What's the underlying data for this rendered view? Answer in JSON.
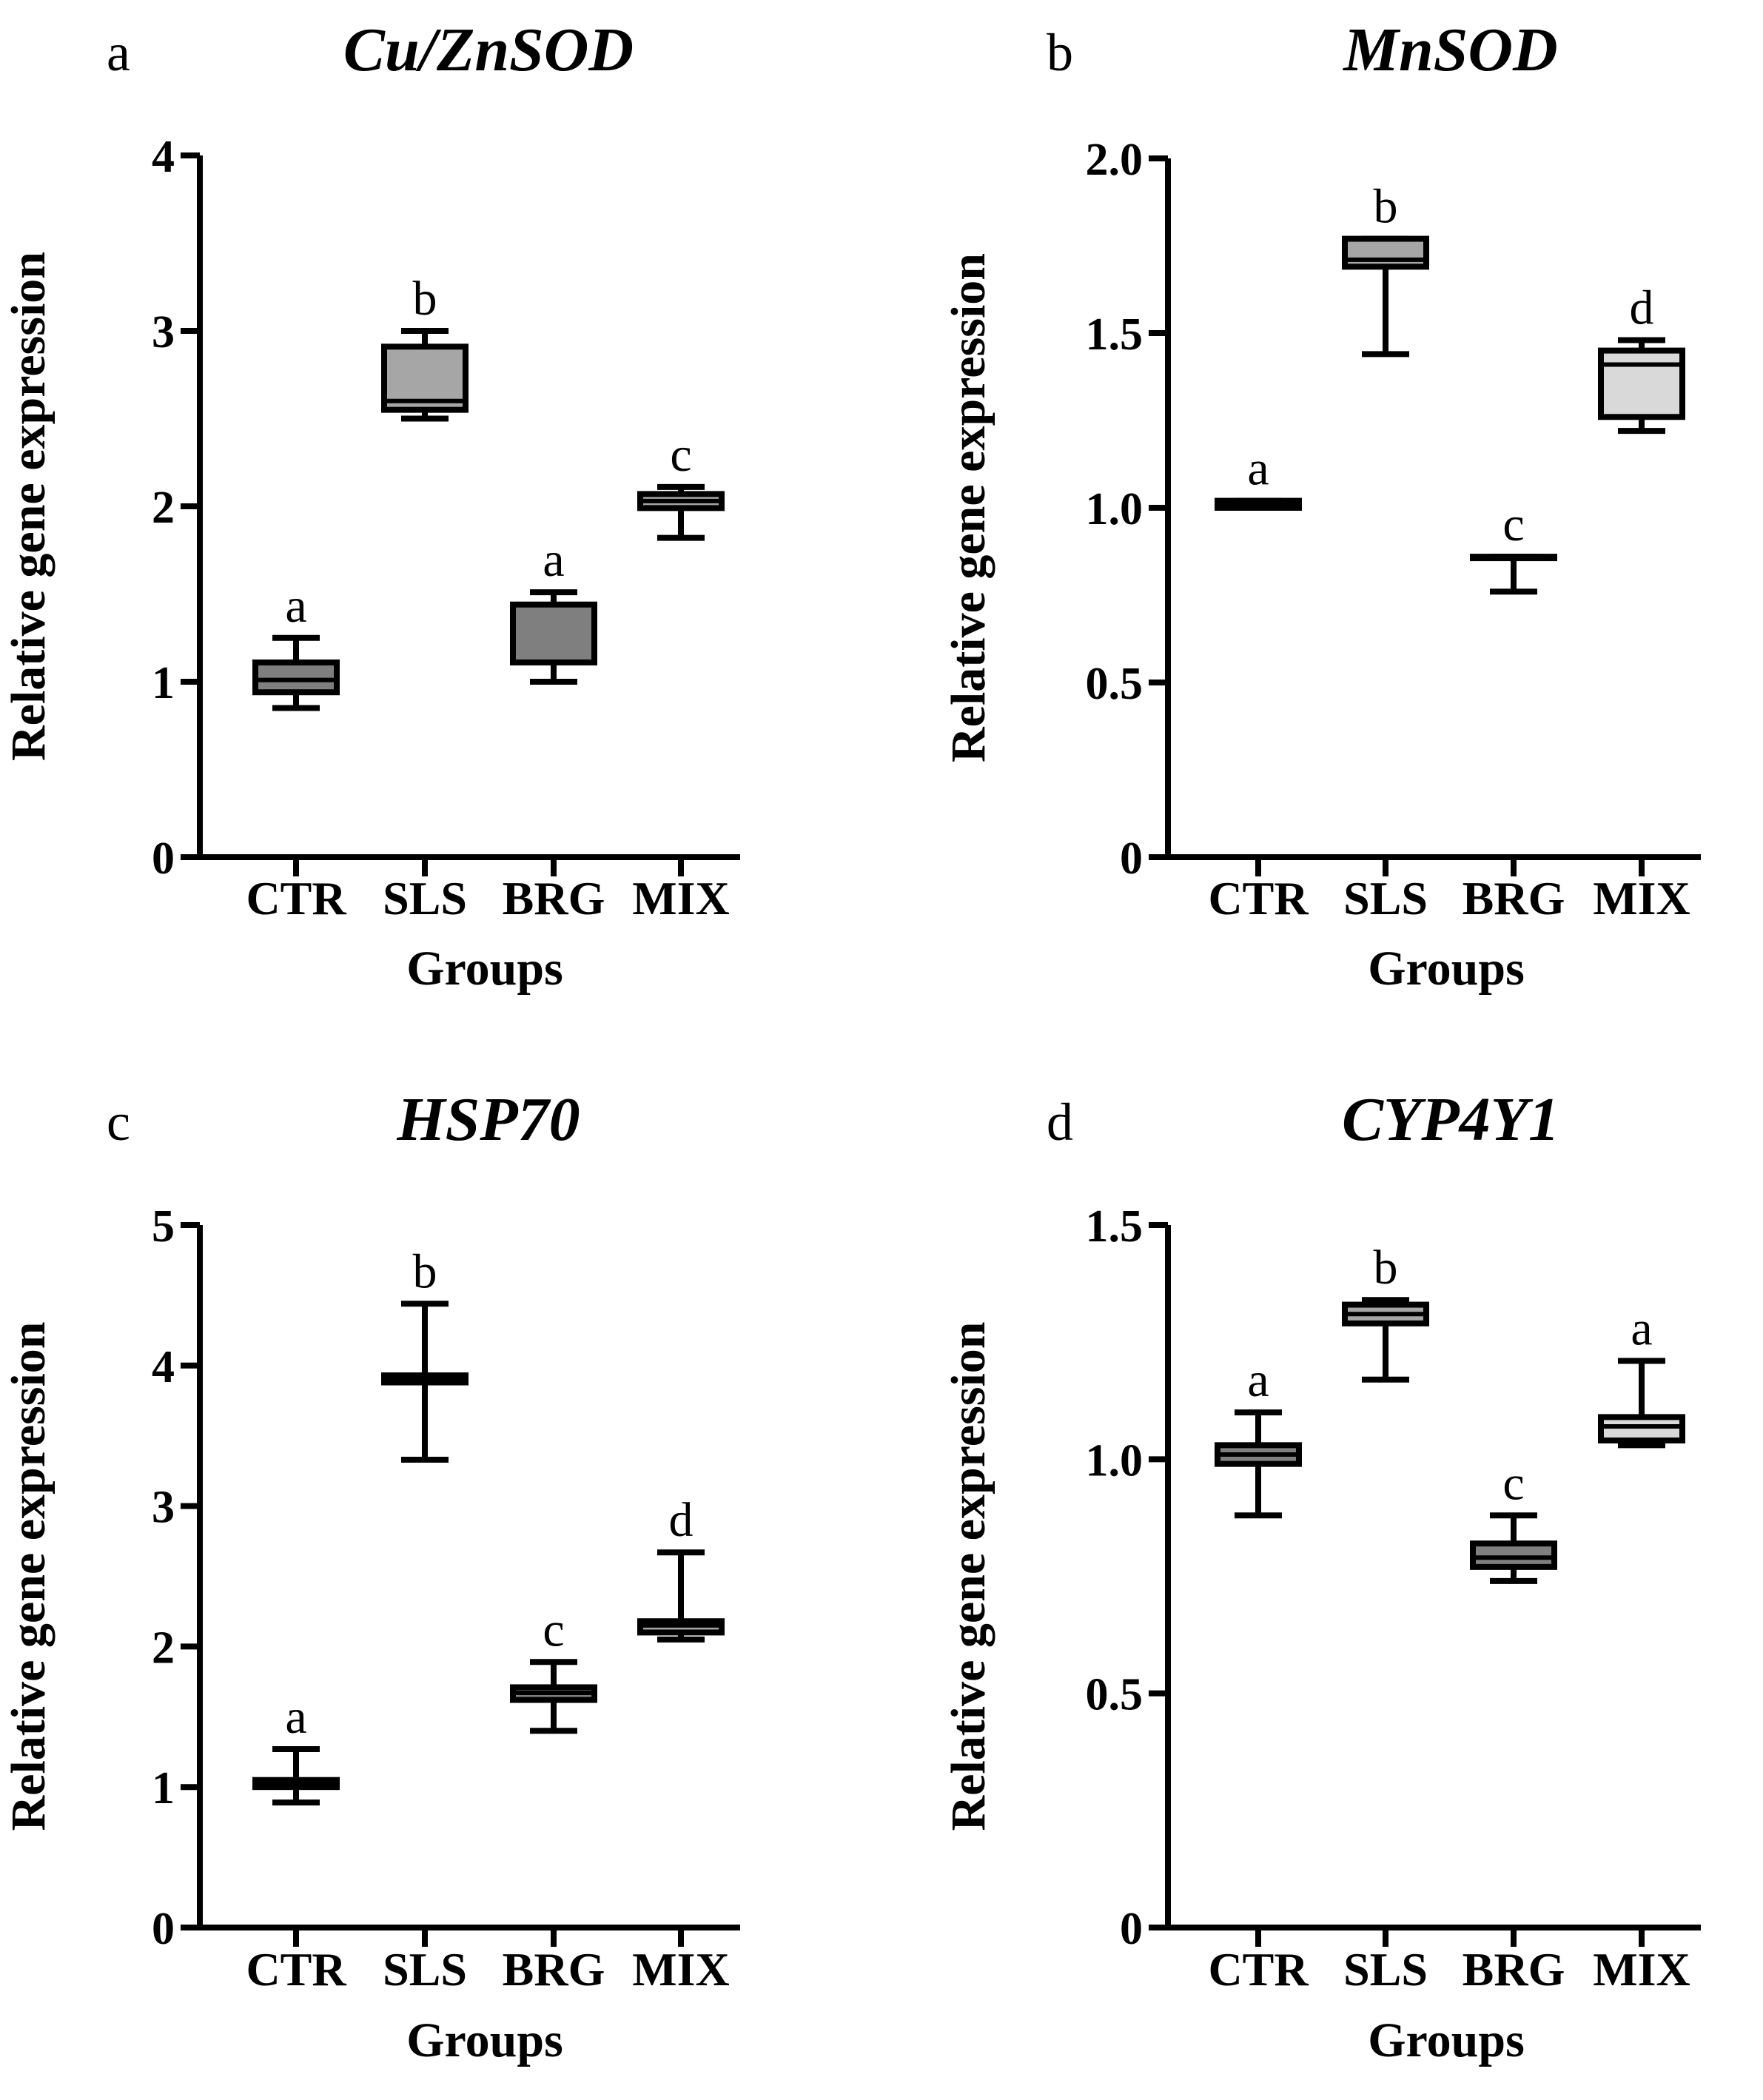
{
  "chart_data": [
    {
      "type": "box",
      "panel": "a",
      "title": "Cu/ZnSOD",
      "xlabel": "Groups",
      "ylabel": "Relative gene expression",
      "ylim": [
        0,
        4
      ],
      "yticks": [
        {
          "value": 0,
          "label": "0"
        },
        {
          "value": 1,
          "label": "1"
        },
        {
          "value": 2,
          "label": "2"
        },
        {
          "value": 3,
          "label": "3"
        },
        {
          "value": 4,
          "label": "4"
        }
      ],
      "categories": [
        "CTR",
        "SLS",
        "BRG",
        "MIX"
      ],
      "boxes": [
        {
          "group": "CTR",
          "min": 0.85,
          "q1": 0.94,
          "median": 1.01,
          "q3": 1.11,
          "max": 1.25,
          "fill": "#7f7f7f",
          "sig": "a"
        },
        {
          "group": "SLS",
          "min": 2.5,
          "q1": 2.55,
          "median": 2.6,
          "q3": 2.91,
          "max": 3.0,
          "fill": "#a6a6a6",
          "sig": "b"
        },
        {
          "group": "BRG",
          "min": 1.0,
          "q1": 1.11,
          "median": 1.11,
          "q3": 1.44,
          "max": 1.51,
          "fill": "#7f7f7f",
          "sig": "a"
        },
        {
          "group": "MIX",
          "min": 1.82,
          "q1": 1.99,
          "median": 2.03,
          "q3": 2.07,
          "max": 2.11,
          "fill": "#a6a6a6",
          "sig": "c"
        }
      ]
    },
    {
      "type": "box",
      "panel": "b",
      "title": "MnSOD",
      "xlabel": "Groups",
      "ylabel": "Relative gene expression",
      "ylim": [
        0,
        2.0
      ],
      "yticks": [
        {
          "value": 0,
          "label": "0"
        },
        {
          "value": 0.5,
          "label": "0.5"
        },
        {
          "value": 1.0,
          "label": "1.0"
        },
        {
          "value": 1.5,
          "label": "1.5"
        },
        {
          "value": 2.0,
          "label": "2.0"
        }
      ],
      "categories": [
        "CTR",
        "SLS",
        "BRG",
        "MIX"
      ],
      "boxes": [
        {
          "group": "CTR",
          "min": 1.0,
          "q1": 1.0,
          "median": 1.01,
          "q3": 1.02,
          "max": 1.02,
          "fill": "#7f7f7f",
          "sig": "a"
        },
        {
          "group": "SLS",
          "min": 1.44,
          "q1": 1.69,
          "median": 1.71,
          "q3": 1.77,
          "max": 1.77,
          "fill": "#a6a6a6",
          "sig": "b"
        },
        {
          "group": "BRG",
          "min": 0.76,
          "q1": 0.86,
          "median": 0.86,
          "q3": 0.86,
          "max": 0.86,
          "fill": "#7f7f7f",
          "sig": "c"
        },
        {
          "group": "MIX",
          "min": 1.22,
          "q1": 1.26,
          "median": 1.41,
          "q3": 1.45,
          "max": 1.48,
          "fill": "#d9d9d9",
          "sig": "d"
        }
      ]
    },
    {
      "type": "box",
      "panel": "c",
      "title": "HSP70",
      "xlabel": "Groups",
      "ylabel": "Relative gene expression",
      "ylim": [
        0,
        5
      ],
      "yticks": [
        {
          "value": 0,
          "label": "0"
        },
        {
          "value": 1,
          "label": "1"
        },
        {
          "value": 2,
          "label": "2"
        },
        {
          "value": 3,
          "label": "3"
        },
        {
          "value": 4,
          "label": "4"
        },
        {
          "value": 5,
          "label": "5"
        }
      ],
      "categories": [
        "CTR",
        "SLS",
        "BRG",
        "MIX"
      ],
      "boxes": [
        {
          "group": "CTR",
          "min": 0.89,
          "q1": 1.0,
          "median": 1.02,
          "q3": 1.05,
          "max": 1.27,
          "fill": "#7f7f7f",
          "sig": "a"
        },
        {
          "group": "SLS",
          "min": 3.33,
          "q1": 3.88,
          "median": 3.9,
          "q3": 3.93,
          "max": 4.44,
          "fill": "#a6a6a6",
          "sig": "b"
        },
        {
          "group": "BRG",
          "min": 1.4,
          "q1": 1.62,
          "median": 1.67,
          "q3": 1.71,
          "max": 1.89,
          "fill": "#7f7f7f",
          "sig": "c"
        },
        {
          "group": "MIX",
          "min": 2.05,
          "q1": 2.1,
          "median": 2.15,
          "q3": 2.18,
          "max": 2.67,
          "fill": "#a6a6a6",
          "sig": "d"
        }
      ]
    },
    {
      "type": "box",
      "panel": "d",
      "title": "CYP4Y1",
      "xlabel": "Groups",
      "ylabel": "Relative gene expression",
      "ylim": [
        0,
        1.5
      ],
      "yticks": [
        {
          "value": 0,
          "label": "0"
        },
        {
          "value": 0.5,
          "label": "0.5"
        },
        {
          "value": 1.0,
          "label": "1.0"
        },
        {
          "value": 1.5,
          "label": "1.5"
        }
      ],
      "categories": [
        "CTR",
        "SLS",
        "BRG",
        "MIX"
      ],
      "boxes": [
        {
          "group": "CTR",
          "min": 0.88,
          "q1": 0.99,
          "median": 1.01,
          "q3": 1.03,
          "max": 1.1,
          "fill": "#7f7f7f",
          "sig": "a"
        },
        {
          "group": "SLS",
          "min": 1.17,
          "q1": 1.29,
          "median": 1.31,
          "q3": 1.33,
          "max": 1.34,
          "fill": "#a6a6a6",
          "sig": "b"
        },
        {
          "group": "BRG",
          "min": 0.74,
          "q1": 0.77,
          "median": 0.79,
          "q3": 0.82,
          "max": 0.88,
          "fill": "#7f7f7f",
          "sig": "c"
        },
        {
          "group": "MIX",
          "min": 1.03,
          "q1": 1.04,
          "median": 1.07,
          "q3": 1.09,
          "max": 1.21,
          "fill": "#d9d9d9",
          "sig": "a"
        }
      ]
    }
  ]
}
